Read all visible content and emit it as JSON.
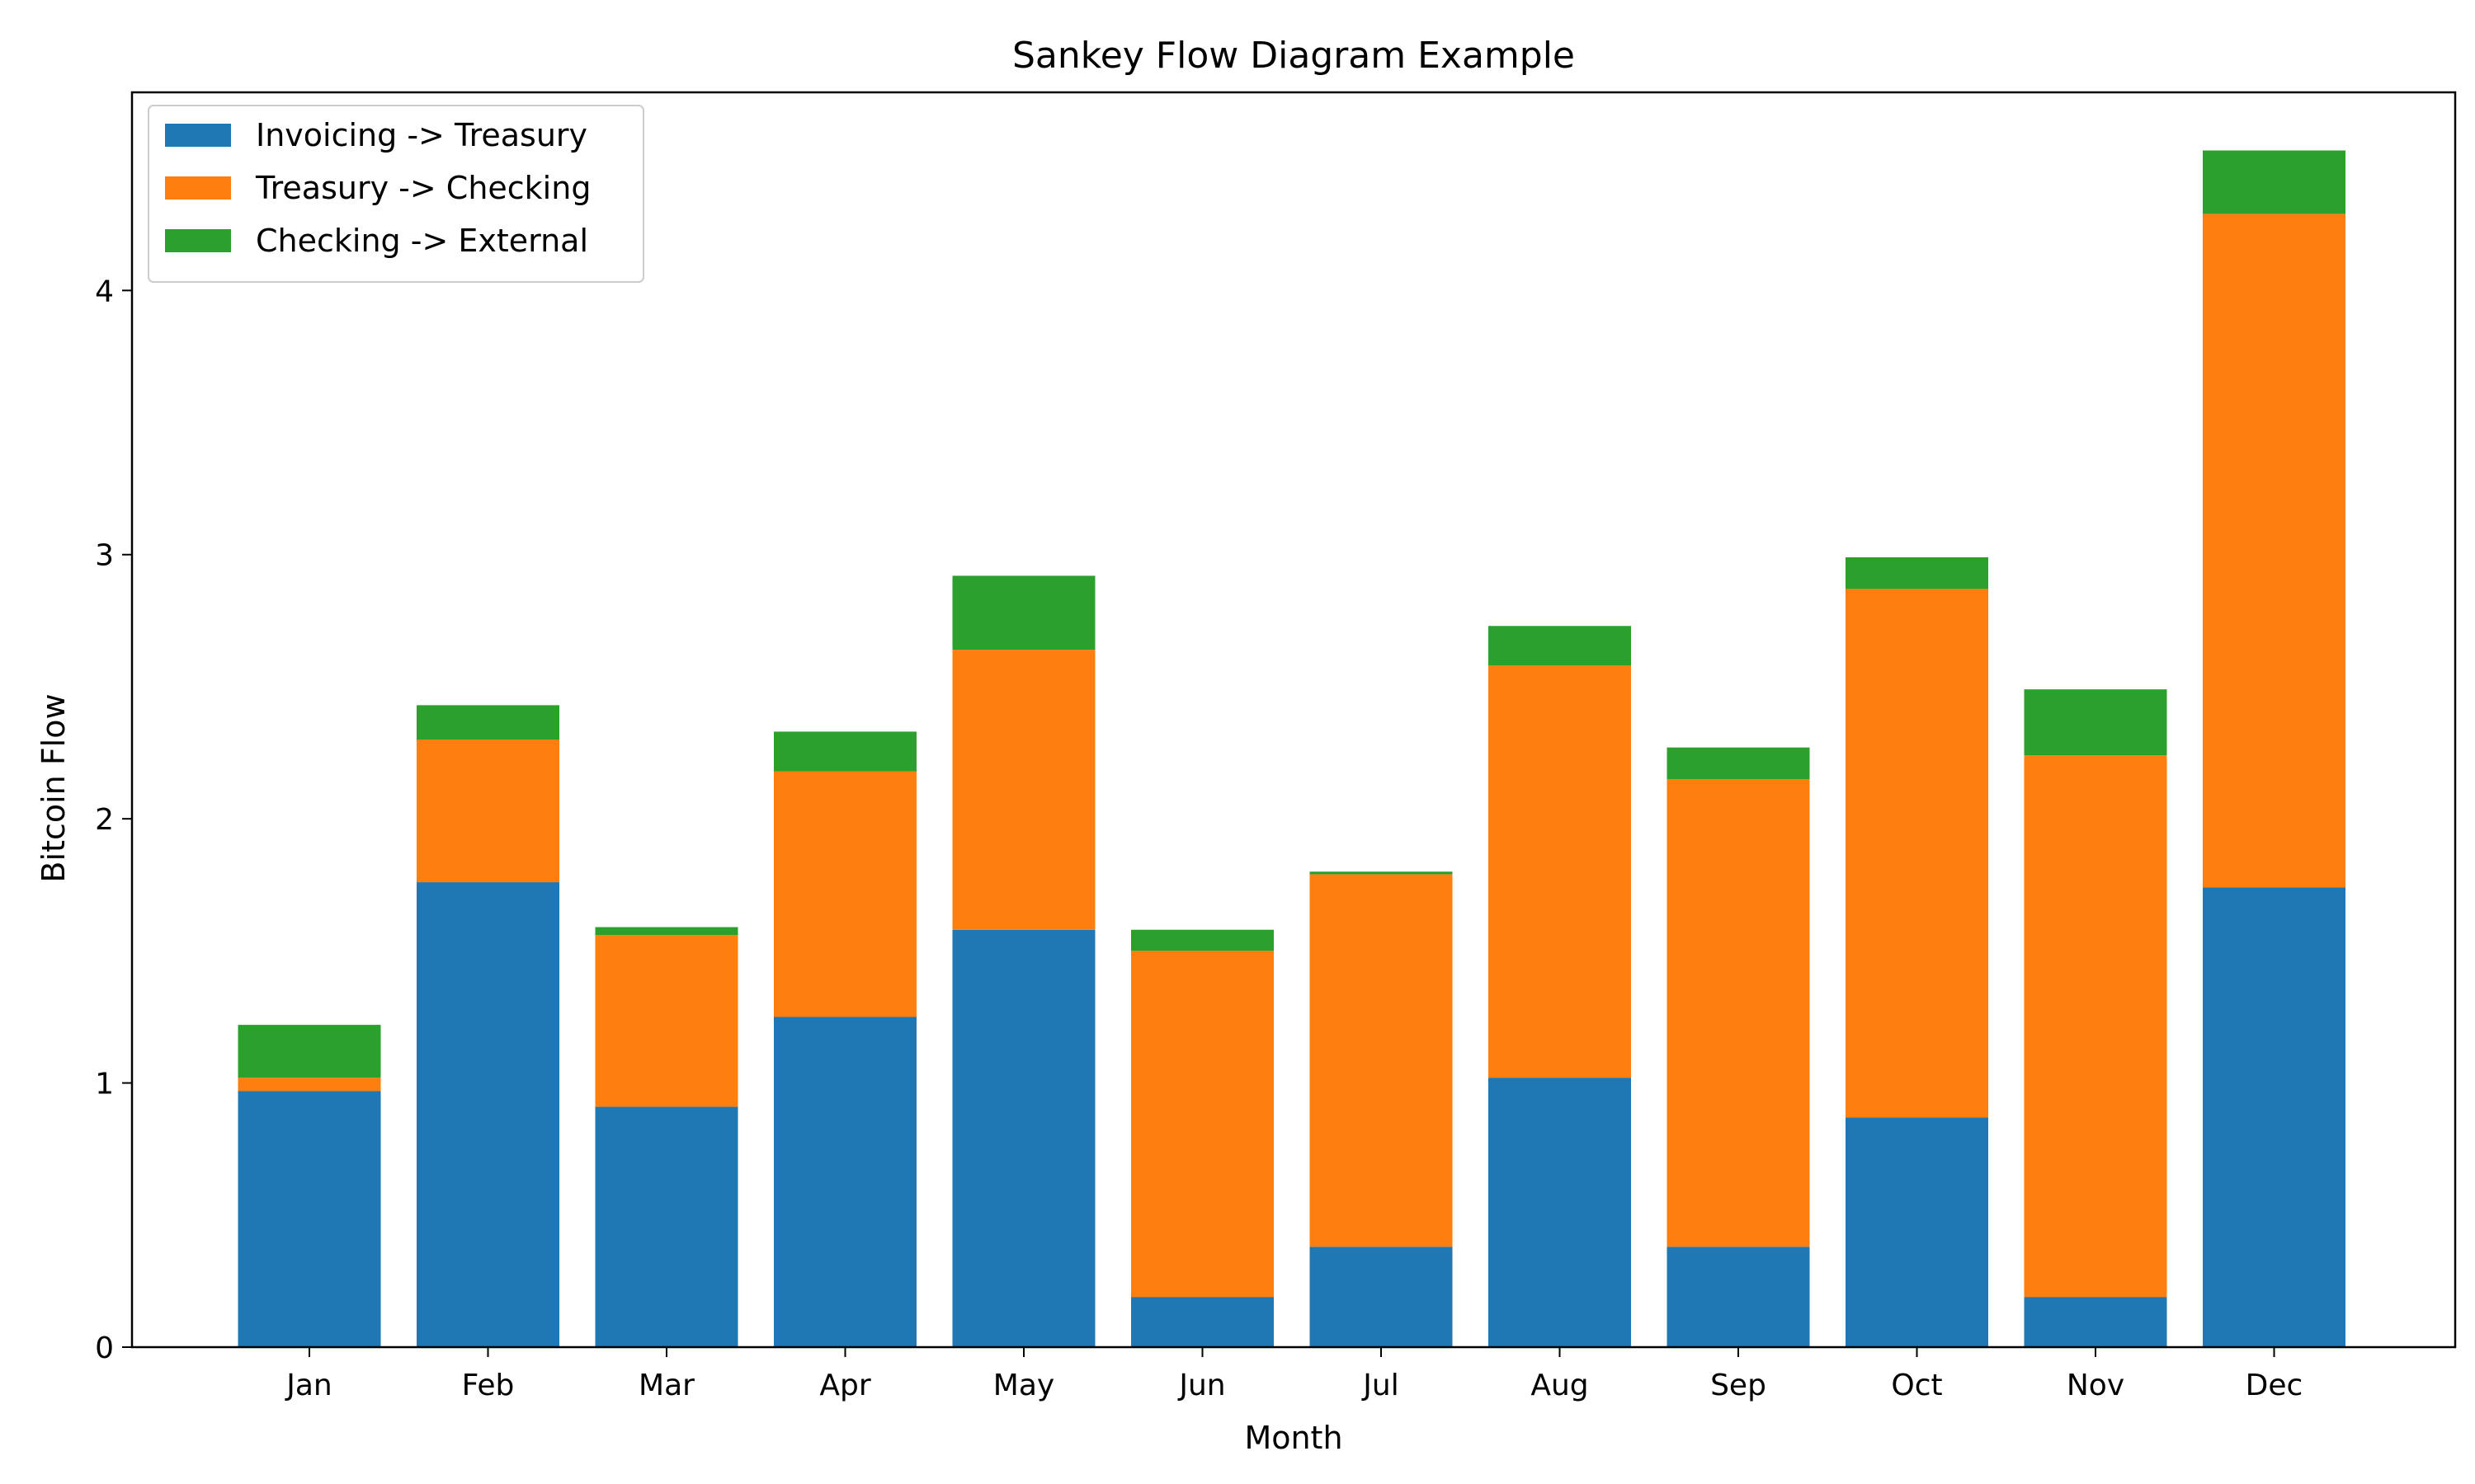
{
  "chart_data": {
    "type": "bar",
    "stacked": true,
    "title": "Sankey Flow Diagram Example",
    "xlabel": "Month",
    "ylabel": "Bitcoin Flow",
    "ylim": [
      0,
      4.75
    ],
    "yticks": [
      0,
      1,
      2,
      3,
      4
    ],
    "grid": false,
    "legend_position": "top-left",
    "categories": [
      "Jan",
      "Feb",
      "Mar",
      "Apr",
      "May",
      "Jun",
      "Jul",
      "Aug",
      "Sep",
      "Oct",
      "Nov",
      "Dec"
    ],
    "series": [
      {
        "name": "Invoicing -> Treasury",
        "color": "#1f77b4",
        "values": [
          0.97,
          1.76,
          0.91,
          1.25,
          1.58,
          0.19,
          0.38,
          1.02,
          0.38,
          0.87,
          0.19,
          1.74
        ]
      },
      {
        "name": "Treasury -> Checking",
        "color": "#ff7f0e",
        "values": [
          0.05,
          0.54,
          0.65,
          0.93,
          1.06,
          1.31,
          1.41,
          1.56,
          1.77,
          2.0,
          2.05,
          2.55
        ]
      },
      {
        "name": "Checking -> External",
        "color": "#2ca02c",
        "values": [
          0.2,
          0.13,
          0.03,
          0.15,
          0.28,
          0.08,
          0.01,
          0.15,
          0.12,
          0.12,
          0.25,
          0.24
        ]
      }
    ]
  }
}
